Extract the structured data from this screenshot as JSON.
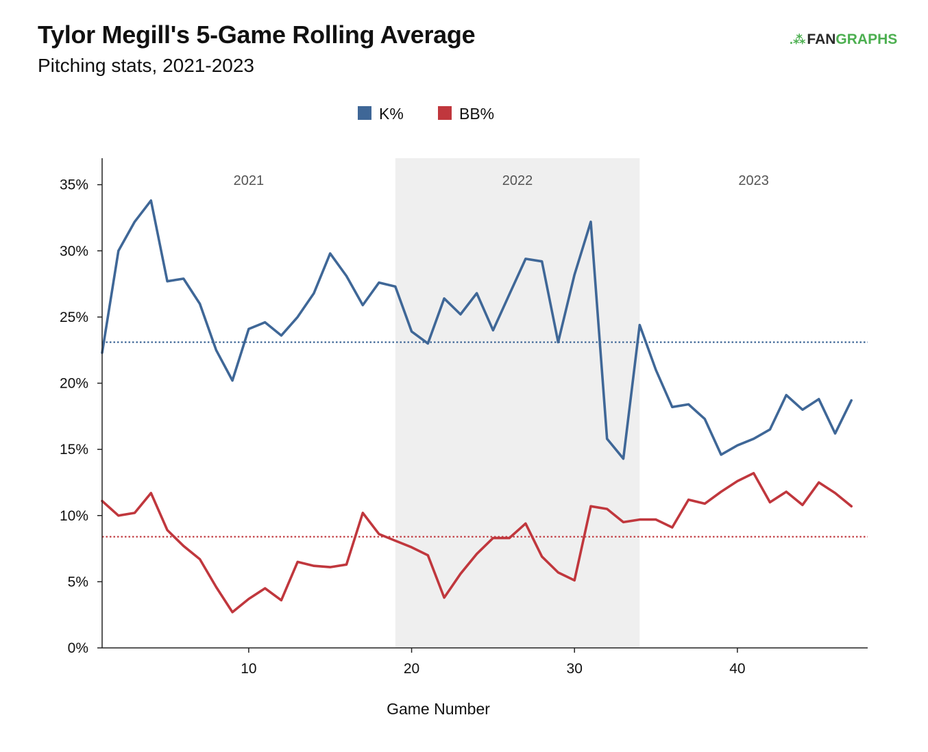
{
  "header": {
    "title": "Tylor Megill's 5-Game Rolling Average",
    "subtitle": "Pitching stats, 2021-2023",
    "logo_prefix": ".⁂",
    "logo_fan": "FAN",
    "logo_graphs": "GRAPHS"
  },
  "colors": {
    "k_pct": "#3f6797",
    "bb_pct": "#c0373d",
    "season_band": "#efefef",
    "logo_green": "#4caf50"
  },
  "chart_data": {
    "type": "line",
    "title": "Tylor Megill's 5-Game Rolling Average",
    "subtitle": "Pitching stats, 2021-2023",
    "xlabel": "Game Number",
    "ylabel": "",
    "xlim": [
      1,
      48
    ],
    "ylim": [
      0,
      37
    ],
    "x_ticks": [
      10,
      20,
      30,
      40
    ],
    "y_ticks": [
      0,
      5,
      10,
      15,
      20,
      25,
      30,
      35
    ],
    "y_tick_labels": [
      "0%",
      "5%",
      "10%",
      "15%",
      "20%",
      "25%",
      "30%",
      "35%"
    ],
    "legend": {
      "placement": "top-center",
      "entries": [
        "K%",
        "BB%"
      ]
    },
    "grid": false,
    "seasons": [
      {
        "label": "2021",
        "start": 1,
        "end": 19,
        "shaded": false
      },
      {
        "label": "2022",
        "start": 19,
        "end": 34,
        "shaded": true
      },
      {
        "label": "2023",
        "start": 34,
        "end": 48,
        "shaded": false
      }
    ],
    "x": [
      1,
      2,
      3,
      4,
      5,
      6,
      7,
      8,
      9,
      10,
      11,
      12,
      13,
      14,
      15,
      16,
      17,
      18,
      19,
      20,
      21,
      22,
      23,
      24,
      25,
      26,
      27,
      28,
      29,
      30,
      31,
      32,
      33,
      34,
      35,
      36,
      37,
      38,
      39,
      40,
      41,
      42,
      43,
      44,
      45,
      46,
      47
    ],
    "series": [
      {
        "name": "K%",
        "color": "#3f6797",
        "values": [
          22.3,
          30.0,
          32.2,
          33.8,
          27.7,
          27.9,
          26.0,
          22.5,
          20.2,
          24.1,
          24.6,
          23.6,
          25.0,
          26.8,
          29.8,
          28.1,
          25.9,
          27.6,
          27.3,
          23.9,
          23.0,
          26.4,
          25.2,
          26.8,
          24.0,
          26.7,
          29.4,
          29.2,
          23.1,
          28.2,
          32.2,
          15.8,
          14.3,
          24.4,
          21.0,
          18.2,
          18.4,
          17.3,
          14.6,
          15.3,
          15.8,
          16.5,
          19.1,
          18.0,
          18.8,
          16.2,
          18.7
        ],
        "average": 23.1
      },
      {
        "name": "BB%",
        "color": "#c0373d",
        "values": [
          11.1,
          10.0,
          10.2,
          11.7,
          8.9,
          7.7,
          6.7,
          4.6,
          2.7,
          3.7,
          4.5,
          3.6,
          6.5,
          6.2,
          6.1,
          6.3,
          10.2,
          8.6,
          8.1,
          7.6,
          7.0,
          3.8,
          5.6,
          7.1,
          8.3,
          8.3,
          9.4,
          6.9,
          5.7,
          5.1,
          10.7,
          10.5,
          9.5,
          9.7,
          9.7,
          9.1,
          11.2,
          10.9,
          11.8,
          12.6,
          13.2,
          11.0,
          11.8,
          10.8,
          12.5,
          11.7,
          10.7
        ],
        "average": 8.4
      }
    ]
  }
}
